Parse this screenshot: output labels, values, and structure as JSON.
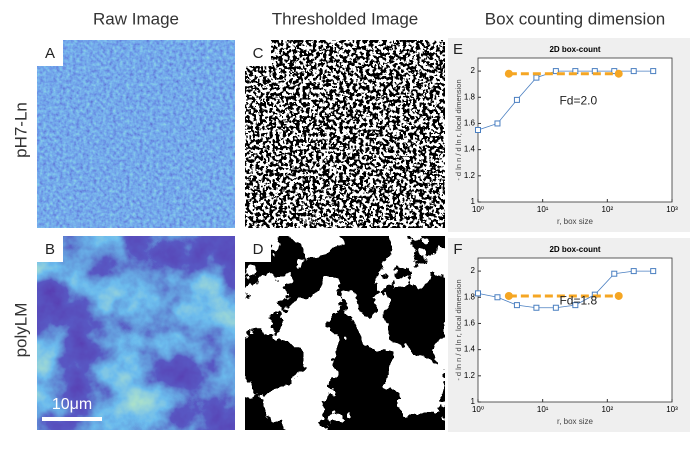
{
  "figure": {
    "columns": [
      "Raw Image",
      "Thresholded Image",
      "Box counting dimension"
    ],
    "rows": [
      "pH7-Ln",
      "polyLM"
    ],
    "panels": [
      "A",
      "B",
      "C",
      "D"
    ],
    "scale_bar": "10μm"
  },
  "chart_data": [
    {
      "type": "line",
      "panel": "E",
      "title": "2D box-count",
      "xlabel": "r, box size",
      "ylabel": "- d ln n / d ln r, local dimension",
      "annotation": "Fd=2.0",
      "xscale": "log",
      "xlim": [
        1,
        1000
      ],
      "xticks": [
        {
          "value": 1,
          "label": "10⁰"
        },
        {
          "value": 10,
          "label": "10¹"
        },
        {
          "value": 100,
          "label": "10²"
        },
        {
          "value": 1000,
          "label": "10³"
        }
      ],
      "ylim": [
        1,
        2.1
      ],
      "yticks": [
        1,
        1.2,
        1.4,
        1.6,
        1.8,
        2
      ],
      "series": [
        {
          "color": "#4a7fc1",
          "marker": "square",
          "linestyle": "solid",
          "x": [
            1,
            2,
            4,
            8,
            16,
            32,
            64,
            128,
            256,
            512
          ],
          "values": [
            1.55,
            1.6,
            1.78,
            1.95,
            2.0,
            2.0,
            2.0,
            2.0,
            2.0,
            2.0
          ]
        },
        {
          "color": "#f5a623",
          "marker": "circle",
          "linestyle": "dashed",
          "x": [
            3,
            150
          ],
          "values": [
            1.98,
            1.98
          ]
        }
      ]
    },
    {
      "type": "line",
      "panel": "F",
      "title": "2D box-count",
      "xlabel": "r, box size",
      "ylabel": "- d ln n / d ln r, local dimension",
      "annotation": "Fd=1.8",
      "xscale": "log",
      "xlim": [
        1,
        1000
      ],
      "xticks": [
        {
          "value": 1,
          "label": "10⁰"
        },
        {
          "value": 10,
          "label": "10¹"
        },
        {
          "value": 100,
          "label": "10²"
        },
        {
          "value": 1000,
          "label": "10³"
        }
      ],
      "ylim": [
        1,
        2.1
      ],
      "yticks": [
        1,
        1.2,
        1.4,
        1.6,
        1.8,
        2
      ],
      "series": [
        {
          "color": "#4a7fc1",
          "marker": "square",
          "linestyle": "solid",
          "x": [
            1,
            2,
            4,
            8,
            16,
            32,
            64,
            128,
            256,
            512
          ],
          "values": [
            1.83,
            1.8,
            1.74,
            1.72,
            1.72,
            1.74,
            1.82,
            1.98,
            2.0,
            2.0
          ]
        },
        {
          "color": "#f5a623",
          "marker": "circle",
          "linestyle": "dashed",
          "x": [
            3,
            150
          ],
          "values": [
            1.81,
            1.81
          ]
        }
      ]
    }
  ]
}
